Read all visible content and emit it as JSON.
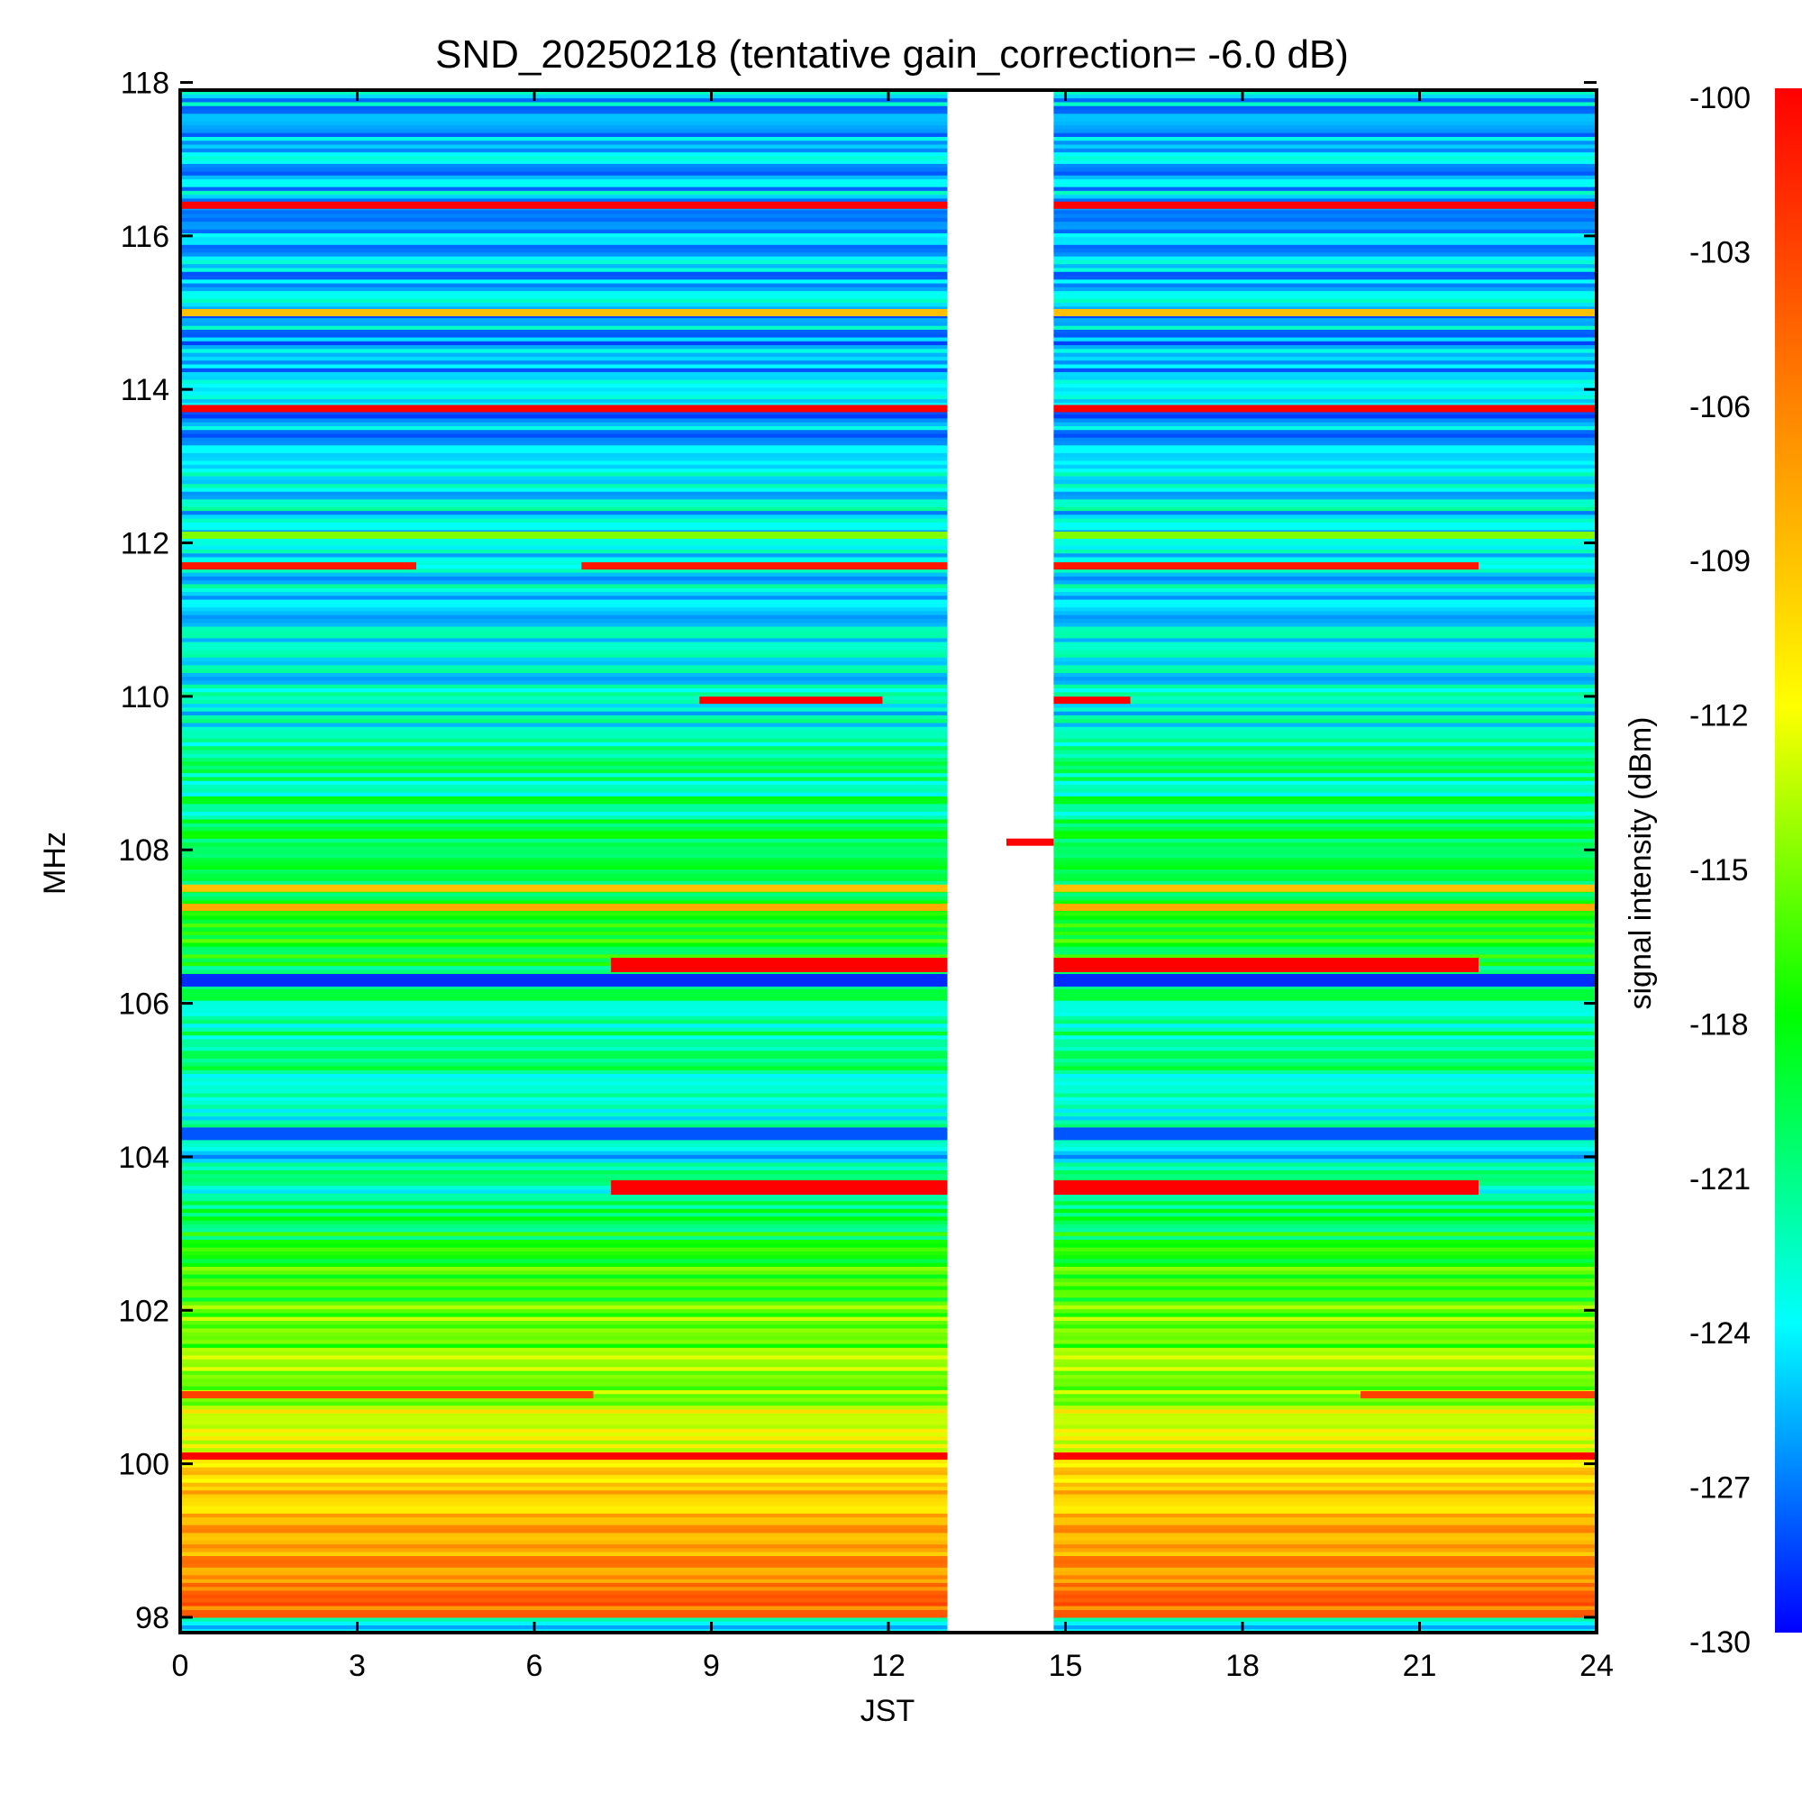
{
  "chart_data": {
    "type": "heatmap",
    "title": "SND_20250218 (tentative gain_correction= -6.0 dB)",
    "xlabel": "JST",
    "ylabel": "MHz",
    "colorbar_label": "signal intensity (dBm)",
    "xlim": [
      0,
      24
    ],
    "ylim": [
      97.8,
      117.9
    ],
    "x_ticks": [
      0,
      3,
      6,
      9,
      12,
      15,
      18,
      21,
      24
    ],
    "y_ticks": [
      98,
      100,
      102,
      104,
      106,
      108,
      110,
      112,
      114,
      116,
      118
    ],
    "color_range": [
      -130,
      -100
    ],
    "colorbar_ticks": [
      -100,
      -103,
      -106,
      -109,
      -112,
      -115,
      -118,
      -121,
      -124,
      -127,
      -130
    ],
    "colormap": [
      "#0000ff",
      "#00ffff",
      "#00ff00",
      "#ffff00",
      "#ff8000",
      "#ff0000"
    ],
    "data_gap_jst": [
      13.0,
      14.8
    ],
    "background_profile_dbm": [
      {
        "mhz": 98.0,
        "dbm": -105
      },
      {
        "mhz": 99.0,
        "dbm": -108
      },
      {
        "mhz": 100.0,
        "dbm": -111
      },
      {
        "mhz": 101.0,
        "dbm": -114
      },
      {
        "mhz": 102.0,
        "dbm": -116
      },
      {
        "mhz": 103.0,
        "dbm": -119
      },
      {
        "mhz": 104.0,
        "dbm": -124
      },
      {
        "mhz": 105.0,
        "dbm": -122
      },
      {
        "mhz": 106.0,
        "dbm": -121
      },
      {
        "mhz": 107.0,
        "dbm": -118
      },
      {
        "mhz": 108.0,
        "dbm": -120
      },
      {
        "mhz": 110.0,
        "dbm": -124
      },
      {
        "mhz": 112.0,
        "dbm": -124
      },
      {
        "mhz": 114.0,
        "dbm": -126
      },
      {
        "mhz": 116.0,
        "dbm": -125
      },
      {
        "mhz": 118.0,
        "dbm": -125
      }
    ],
    "signal_bands": [
      {
        "mhz": 116.4,
        "t0": 0,
        "t1": 24,
        "dbm": -100
      },
      {
        "mhz": 115.0,
        "t0": 0,
        "t1": 24,
        "dbm": -109
      },
      {
        "mhz": 113.75,
        "t0": 0,
        "t1": 24,
        "dbm": -100
      },
      {
        "mhz": 112.1,
        "t0": 0,
        "t1": 24,
        "dbm": -115
      },
      {
        "mhz": 111.7,
        "t0": 0,
        "t1": 4,
        "dbm": -101
      },
      {
        "mhz": 111.7,
        "t0": 6.8,
        "t1": 22,
        "dbm": -101
      },
      {
        "mhz": 109.95,
        "t0": 8.8,
        "t1": 11.9,
        "dbm": -100
      },
      {
        "mhz": 109.95,
        "t0": 14.8,
        "t1": 16.1,
        "dbm": -100
      },
      {
        "mhz": 108.1,
        "t0": 14.0,
        "t1": 14.8,
        "dbm": -100
      },
      {
        "mhz": 107.5,
        "t0": 0,
        "t1": 24,
        "dbm": -109
      },
      {
        "mhz": 107.25,
        "t0": 0,
        "t1": 24,
        "dbm": -108
      },
      {
        "mhz": 106.5,
        "t0": 7.3,
        "t1": 22,
        "dbm": -100
      },
      {
        "mhz": 106.3,
        "t0": 0,
        "t1": 24,
        "dbm": -129
      },
      {
        "mhz": 104.3,
        "t0": 0,
        "t1": 24,
        "dbm": -128
      },
      {
        "mhz": 103.6,
        "t0": 7.3,
        "t1": 22,
        "dbm": -100
      },
      {
        "mhz": 100.9,
        "t0": 0,
        "t1": 7,
        "dbm": -103
      },
      {
        "mhz": 100.9,
        "t0": 20,
        "t1": 24,
        "dbm": -103
      },
      {
        "mhz": 100.1,
        "t0": 0,
        "t1": 24,
        "dbm": -100
      }
    ]
  }
}
